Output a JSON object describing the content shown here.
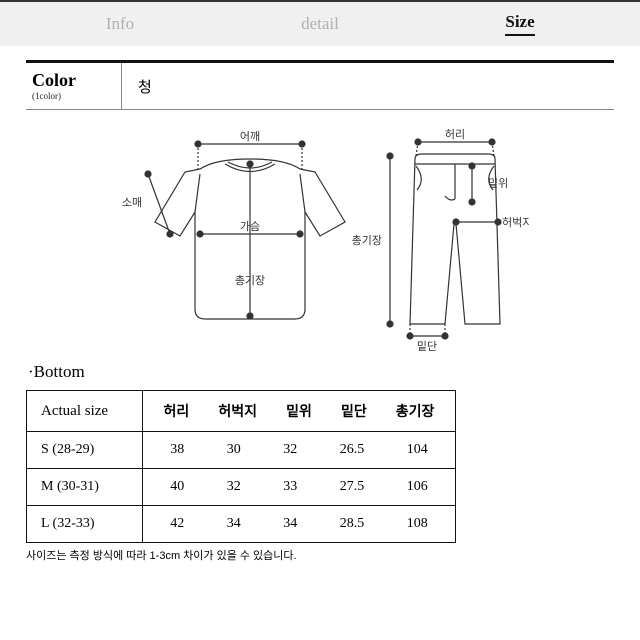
{
  "tabs": {
    "info": "Info",
    "detail": "detail",
    "size": "Size",
    "active": "size"
  },
  "color": {
    "label": "Color",
    "sub": "(1color)",
    "value": "청"
  },
  "diagram": {
    "labels": {
      "shoulder": "어깨",
      "sleeve": "소매",
      "chest": "가슴",
      "length": "총기장",
      "waist": "허리",
      "rise": "밑위",
      "thigh": "허벅지",
      "hem": "밑단",
      "pants_length": "총기장"
    },
    "stroke": "#333333",
    "fill": "#ffffff",
    "label_font": "11px"
  },
  "section": {
    "bottom": "·Bottom"
  },
  "table": {
    "header_first": "Actual size",
    "headers": [
      "허리",
      "허벅지",
      "밑위",
      "밑단",
      "총기장"
    ],
    "rows": [
      {
        "label": "S (28-29)",
        "values": [
          "38",
          "30",
          "32",
          "26.5",
          "104"
        ]
      },
      {
        "label": "M (30-31)",
        "values": [
          "40",
          "32",
          "33",
          "27.5",
          "106"
        ]
      },
      {
        "label": "L (32-33)",
        "values": [
          "42",
          "34",
          "34",
          "28.5",
          "108"
        ]
      }
    ]
  },
  "note": "사이즈는 측정 방식에 따라 1-3cm 차이가 있을 수 있습니다."
}
